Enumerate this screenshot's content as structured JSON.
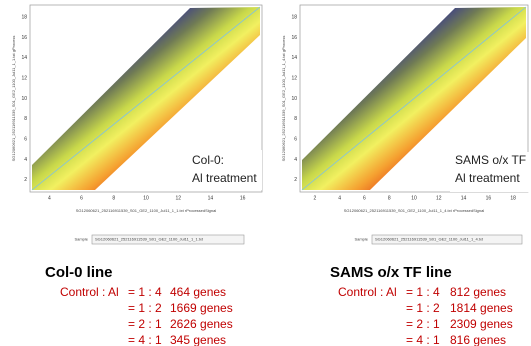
{
  "panels": [
    {
      "y_axis_label": "SG12060621_252116911539_S01_GE2_1100_Jul11_1_1.txt gProcess",
      "x_axis_label": "SG12060621_252116911539_S01_GE2_1100_Jul11_1_1.txt rProcessedSignal",
      "xticks": [
        "4",
        "6",
        "8",
        "10",
        "12",
        "14",
        "16"
      ],
      "yticks": [
        "2",
        "4",
        "6",
        "8",
        "10",
        "12",
        "14",
        "16",
        "18"
      ],
      "annotation": [
        "Col-0:",
        "Al treatment"
      ],
      "sample_label": "Sample",
      "sample_value": "SG12060621_252116911539_S01_GE2_1100_Jul11_1_1.txt"
    },
    {
      "y_axis_label": "SG12060621_252116911539_S01_GE2_1100_Jul11_1_4.txt gProcess",
      "x_axis_label": "SG12060621_252116911539_S01_GE2_1100_Jul11_1_4.txt rProcessedSignal",
      "xticks": [
        "2",
        "4",
        "6",
        "8",
        "10",
        "12",
        "14",
        "16",
        "18"
      ],
      "yticks": [
        "2",
        "4",
        "6",
        "8",
        "10",
        "12",
        "14",
        "16",
        "18"
      ],
      "annotation": [
        "SAMS o/x TF",
        "Al treatment"
      ],
      "sample_label": "Sample",
      "sample_value": "SG12060621_252116911539_S01_GE2_1100_Jul11_1_4.txt"
    }
  ],
  "summaries": [
    {
      "title": "Col-0 line",
      "rows": [
        {
          "prefix": "Control : Al",
          "ratio": "= 1 : 4",
          "genes": "464 genes"
        },
        {
          "prefix": "",
          "ratio": "= 1 : 2",
          "genes": "1669 genes"
        },
        {
          "prefix": "",
          "ratio": "= 2 : 1",
          "genes": "2626 genes"
        },
        {
          "prefix": "",
          "ratio": "= 4 : 1",
          "genes": "345 genes"
        }
      ]
    },
    {
      "title": "SAMS o/x TF line",
      "rows": [
        {
          "prefix": "Control : Al",
          "ratio": "= 1 : 4",
          "genes": "812 genes"
        },
        {
          "prefix": "",
          "ratio": "= 1 : 2",
          "genes": "1814 genes"
        },
        {
          "prefix": "",
          "ratio": "= 2 : 1",
          "genes": "2309 genes"
        },
        {
          "prefix": "",
          "ratio": "= 4 : 1",
          "genes": "816 genes"
        }
      ]
    }
  ]
}
